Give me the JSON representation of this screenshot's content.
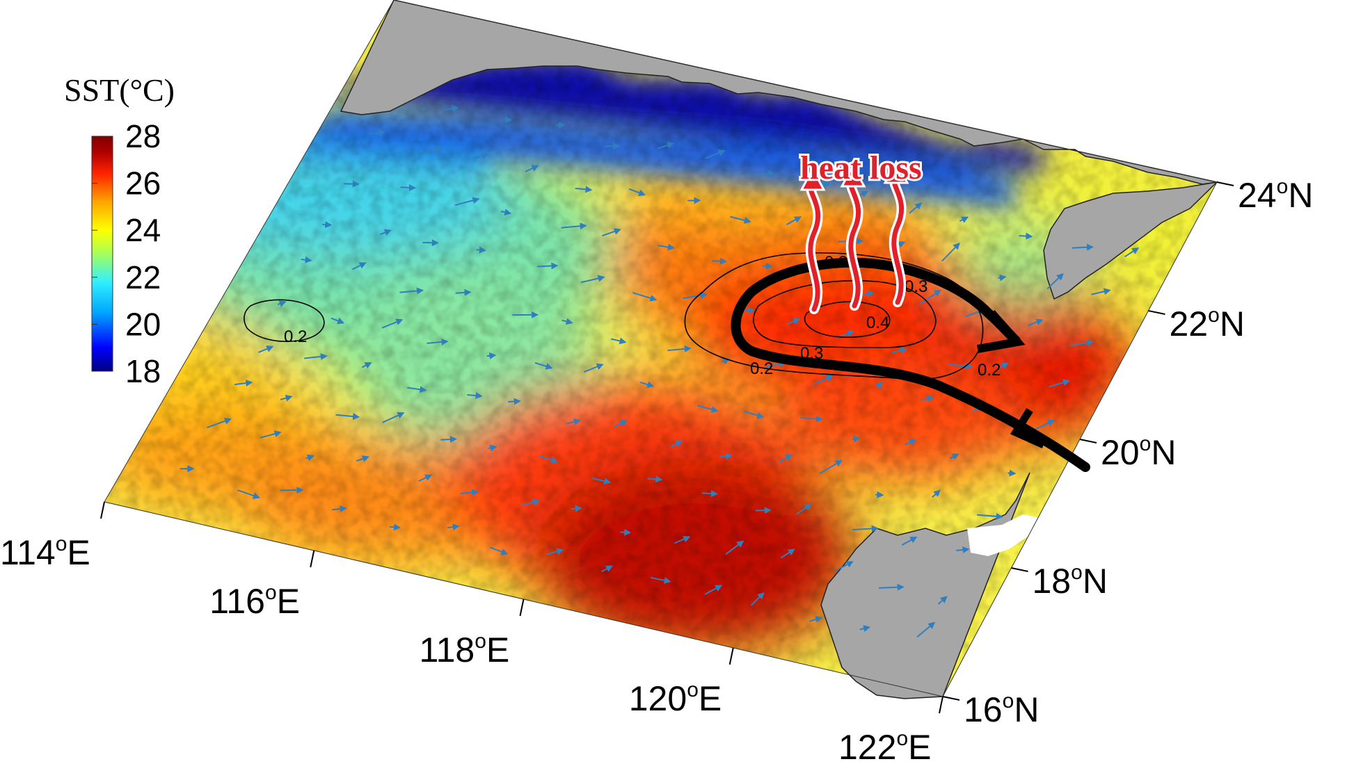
{
  "colorbar": {
    "title": "SST(°C)",
    "ticks": [
      "28",
      "26",
      "24",
      "22",
      "20",
      "18"
    ],
    "min": 18,
    "max": 28,
    "colors": [
      "#00007f",
      "#0000ff",
      "#00a6ff",
      "#30f0ff",
      "#a6ff5a",
      "#ffff00",
      "#ffa600",
      "#ff2400",
      "#b10000",
      "#7f0000"
    ]
  },
  "axes": {
    "lon_ticks": [
      {
        "value": 114,
        "label": "114",
        "sup": "o",
        "suffix": "E"
      },
      {
        "value": 116,
        "label": "116",
        "sup": "o",
        "suffix": "E"
      },
      {
        "value": 118,
        "label": "118",
        "sup": "o",
        "suffix": "E"
      },
      {
        "value": 120,
        "label": "120",
        "sup": "o",
        "suffix": "E"
      },
      {
        "value": 122,
        "label": "122",
        "sup": "o",
        "suffix": "E"
      }
    ],
    "lat_ticks": [
      {
        "value": 16,
        "label": "16",
        "sup": "o",
        "suffix": "N"
      },
      {
        "value": 18,
        "label": "18",
        "sup": "o",
        "suffix": "N"
      },
      {
        "value": 20,
        "label": "20",
        "sup": "o",
        "suffix": "N"
      },
      {
        "value": 22,
        "label": "22",
        "sup": "o",
        "suffix": "N"
      },
      {
        "value": 24,
        "label": "24",
        "sup": "o",
        "suffix": "N"
      }
    ]
  },
  "annotations": {
    "heat_loss": "heat loss",
    "contours": [
      "0.2",
      "0.2",
      "0.3",
      "0.4",
      "0.3",
      "0.2",
      "0.3"
    ]
  },
  "colors": {
    "land": "#a6a6a6",
    "arrow": "#e0202a",
    "vector": "#2f7fbf"
  }
}
